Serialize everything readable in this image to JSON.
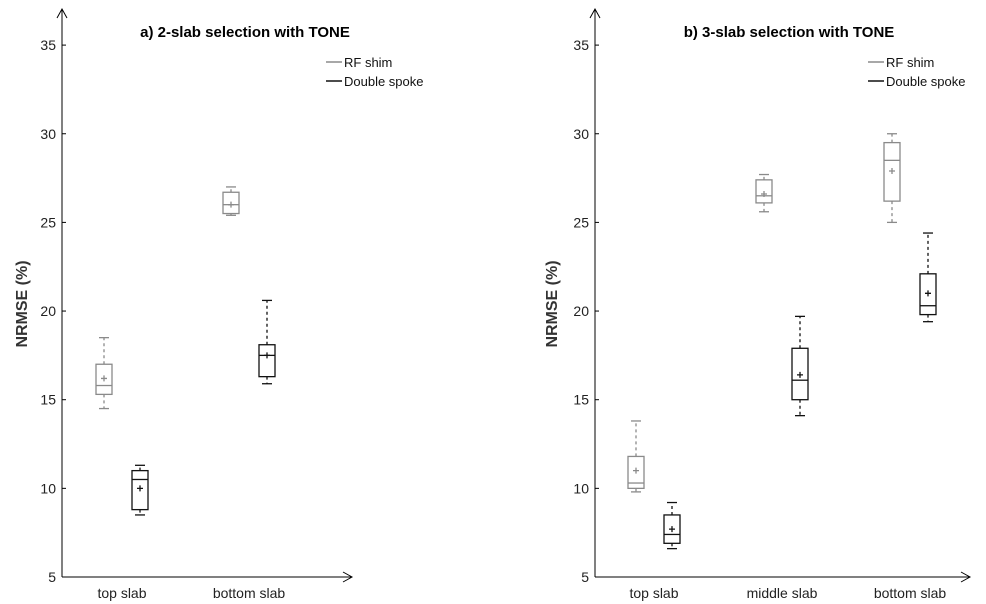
{
  "chart_data": [
    {
      "type": "box",
      "title": "a) 2-slab selection with TONE",
      "ylabel": "NRMSE (%)",
      "xlabel": "",
      "ylim": [
        5,
        36
      ],
      "yticks": [
        5,
        10,
        15,
        20,
        25,
        30,
        35
      ],
      "categories": [
        "top slab",
        "bottom slab"
      ],
      "legend_position": "top-right",
      "series": [
        {
          "name": "RF shim",
          "color": "#8a8a8a",
          "dashed_whiskers": true,
          "boxes": [
            {
              "category": "top slab",
              "min": 14.5,
              "q1": 15.3,
              "median": 15.8,
              "q3": 17.0,
              "max": 18.5,
              "mean": 16.2
            },
            {
              "category": "bottom slab",
              "min": 25.4,
              "q1": 25.5,
              "median": 26.0,
              "q3": 26.7,
              "max": 27.0,
              "mean": 26.0
            }
          ]
        },
        {
          "name": "Double spoke",
          "color": "#111111",
          "dashed_whiskers": true,
          "boxes": [
            {
              "category": "top slab",
              "min": 8.5,
              "q1": 8.8,
              "median": 10.5,
              "q3": 11.0,
              "max": 11.3,
              "mean": 10.0
            },
            {
              "category": "bottom slab",
              "min": 15.9,
              "q1": 16.3,
              "median": 17.5,
              "q3": 18.1,
              "max": 20.6,
              "mean": 17.5
            }
          ]
        }
      ]
    },
    {
      "type": "box",
      "title": "b) 3-slab selection with TONE",
      "ylabel": "NRMSE (%)",
      "xlabel": "",
      "ylim": [
        5,
        36
      ],
      "yticks": [
        5,
        10,
        15,
        20,
        25,
        30,
        35
      ],
      "categories": [
        "top slab",
        "middle slab",
        "bottom slab"
      ],
      "legend_position": "top-right",
      "series": [
        {
          "name": "RF shim",
          "color": "#8a8a8a",
          "dashed_whiskers": true,
          "boxes": [
            {
              "category": "top slab",
              "min": 9.8,
              "q1": 10.0,
              "median": 10.3,
              "q3": 11.8,
              "max": 13.8,
              "mean": 11.0
            },
            {
              "category": "middle slab",
              "min": 25.6,
              "q1": 26.1,
              "median": 26.5,
              "q3": 27.4,
              "max": 27.7,
              "mean": 26.6
            },
            {
              "category": "bottom slab",
              "min": 25.0,
              "q1": 26.2,
              "median": 28.5,
              "q3": 29.5,
              "max": 30.0,
              "mean": 27.9
            }
          ]
        },
        {
          "name": "Double spoke",
          "color": "#111111",
          "dashed_whiskers": true,
          "boxes": [
            {
              "category": "top slab",
              "min": 6.6,
              "q1": 6.9,
              "median": 7.4,
              "q3": 8.5,
              "max": 9.2,
              "mean": 7.7
            },
            {
              "category": "middle slab",
              "min": 14.1,
              "q1": 15.0,
              "median": 16.1,
              "q3": 17.9,
              "max": 19.7,
              "mean": 16.4
            },
            {
              "category": "bottom slab",
              "min": 19.4,
              "q1": 19.8,
              "median": 20.3,
              "q3": 22.1,
              "max": 24.4,
              "mean": 21.0
            }
          ]
        }
      ]
    }
  ]
}
